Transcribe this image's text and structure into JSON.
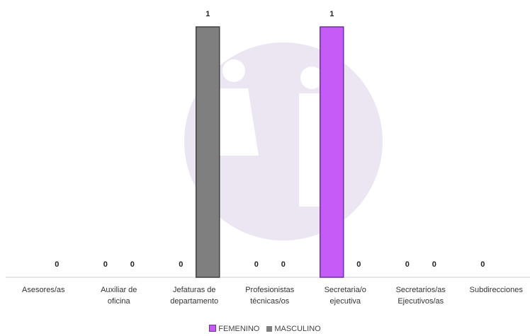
{
  "chart_data": {
    "type": "bar",
    "categories": [
      "Asesores/as",
      "Auxiliar de\noficina",
      "Jefaturas de\ndepartamento",
      "Profesionistas\ntécnicas/os",
      "Secretaria/o\nejecutiva",
      "Secretarios/as\nEjecutivos/as",
      "Subdirecciones"
    ],
    "series": [
      {
        "name": "FEMENINO",
        "color": "#c55cf8",
        "values": [
          null,
          0,
          0,
          0,
          1,
          0,
          0
        ]
      },
      {
        "name": "MASCULINO",
        "color": "#7f7f7f",
        "values": [
          0,
          0,
          1,
          0,
          0,
          0,
          null
        ]
      }
    ],
    "legend": "bottom"
  }
}
